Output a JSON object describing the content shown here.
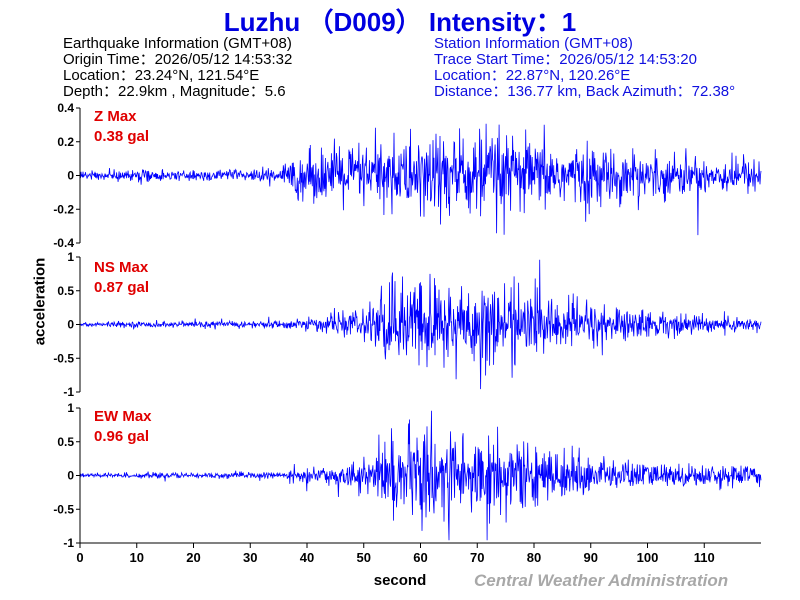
{
  "header": {
    "title": "Luzhu （D009） Intensity：1"
  },
  "earthquake_info": {
    "heading": "Earthquake Information  (GMT+08)",
    "origin_time": "Origin Time：2026/05/12 14:53:32",
    "location": "Location：23.24°N, 121.54°E",
    "depth_magnitude": "Depth：22.9km , Magnitude：5.6"
  },
  "station_info": {
    "heading": "Station Information  (GMT+08)",
    "trace_start": "Trace Start Time：2026/05/12 14:53:20",
    "location": "Location：22.87°N, 120.26°E",
    "distance": "Distance：136.77 km, Back Azimuth：72.38°"
  },
  "footer": {
    "credit": "Central Weather Administration"
  },
  "colors": {
    "trace": "#0000ff",
    "title": "#0000e0",
    "peak_label": "#e00000",
    "credit": "#a8a8a8"
  },
  "chart_data": {
    "type": "line",
    "xlabel": "second",
    "ylabel": "acceleration",
    "xlim": [
      0,
      120
    ],
    "x_ticks": [
      0,
      10,
      20,
      30,
      40,
      50,
      60,
      70,
      80,
      90,
      100,
      110
    ],
    "x_tick_labels": [
      "0",
      "10",
      "20",
      "30",
      "40",
      "50",
      "60",
      "70",
      "80",
      "90",
      "100",
      "110"
    ],
    "grid": false,
    "panels": [
      {
        "component": "Z",
        "label": "Z Max",
        "peak": "0.38 gal",
        "ylim": [
          -0.4,
          0.4
        ],
        "y_ticks": [
          -0.4,
          -0.2,
          0,
          0.2,
          0.4
        ],
        "y_tick_labels": [
          "-0.4",
          "-0.2",
          "0",
          "0.2",
          "0.4"
        ],
        "envelope": [
          [
            0,
            0.03
          ],
          [
            35,
            0.04
          ],
          [
            38,
            0.14
          ],
          [
            45,
            0.18
          ],
          [
            55,
            0.22
          ],
          [
            65,
            0.3
          ],
          [
            72,
            0.28
          ],
          [
            80,
            0.22
          ],
          [
            90,
            0.18
          ],
          [
            100,
            0.14
          ],
          [
            110,
            0.12
          ],
          [
            120,
            0.1
          ]
        ]
      },
      {
        "component": "NS",
        "label": "NS Max",
        "peak": "0.87 gal",
        "ylim": [
          -1,
          1
        ],
        "y_ticks": [
          -1,
          -0.5,
          0,
          0.5,
          1
        ],
        "y_tick_labels": [
          "-1",
          "-0.5",
          "0",
          "0.5",
          "1"
        ],
        "envelope": [
          [
            0,
            0.04
          ],
          [
            35,
            0.06
          ],
          [
            42,
            0.12
          ],
          [
            50,
            0.22
          ],
          [
            53,
            0.6
          ],
          [
            60,
            0.75
          ],
          [
            70,
            0.7
          ],
          [
            80,
            0.5
          ],
          [
            90,
            0.35
          ],
          [
            100,
            0.22
          ],
          [
            110,
            0.15
          ],
          [
            120,
            0.1
          ]
        ]
      },
      {
        "component": "EW",
        "label": "EW Max",
        "peak": "0.96 gal",
        "ylim": [
          -1,
          1
        ],
        "y_ticks": [
          -1,
          -0.5,
          0,
          0.5,
          1
        ],
        "y_tick_labels": [
          "-1",
          "-0.5",
          "0",
          "0.5",
          "1"
        ],
        "envelope": [
          [
            0,
            0.04
          ],
          [
            35,
            0.05
          ],
          [
            40,
            0.1
          ],
          [
            50,
            0.22
          ],
          [
            53,
            0.55
          ],
          [
            60,
            0.72
          ],
          [
            72,
            0.7
          ],
          [
            80,
            0.45
          ],
          [
            90,
            0.3
          ],
          [
            100,
            0.2
          ],
          [
            110,
            0.17
          ],
          [
            120,
            0.15
          ]
        ]
      }
    ]
  }
}
